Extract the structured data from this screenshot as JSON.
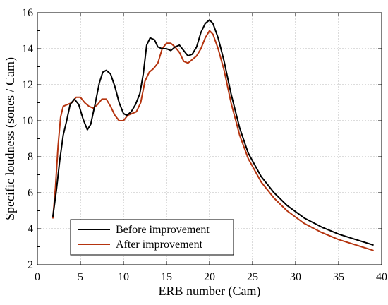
{
  "chart_data": {
    "type": "line",
    "xlabel": "ERB number (Cam)",
    "ylabel": "Specific loudness (sones / Cam)",
    "xlim": [
      0,
      40
    ],
    "ylim": [
      2,
      16
    ],
    "xticks": [
      0,
      5,
      10,
      15,
      20,
      25,
      30,
      35,
      40
    ],
    "yticks": [
      2,
      4,
      6,
      8,
      10,
      12,
      14,
      16
    ],
    "grid": true,
    "legend_position": "bottom-left",
    "series": [
      {
        "name": "Before improvement",
        "color": "#000000",
        "points": [
          [
            1.8,
            4.7
          ],
          [
            2.2,
            6.1
          ],
          [
            2.6,
            7.8
          ],
          [
            3.0,
            9.2
          ],
          [
            3.4,
            10.0
          ],
          [
            3.8,
            10.9
          ],
          [
            4.3,
            11.2
          ],
          [
            4.8,
            10.9
          ],
          [
            5.3,
            10.1
          ],
          [
            5.8,
            9.5
          ],
          [
            6.2,
            9.8
          ],
          [
            6.7,
            10.9
          ],
          [
            7.2,
            12.1
          ],
          [
            7.6,
            12.7
          ],
          [
            8.0,
            12.8
          ],
          [
            8.5,
            12.6
          ],
          [
            9.0,
            11.9
          ],
          [
            9.5,
            11.0
          ],
          [
            10.0,
            10.4
          ],
          [
            10.4,
            10.3
          ],
          [
            10.9,
            10.5
          ],
          [
            11.4,
            10.9
          ],
          [
            11.9,
            11.5
          ],
          [
            12.3,
            12.6
          ],
          [
            12.7,
            14.2
          ],
          [
            13.1,
            14.6
          ],
          [
            13.6,
            14.5
          ],
          [
            14.0,
            14.1
          ],
          [
            14.5,
            14.0
          ],
          [
            15.0,
            14.0
          ],
          [
            15.5,
            13.9
          ],
          [
            16.0,
            14.1
          ],
          [
            16.5,
            14.2
          ],
          [
            17.0,
            13.9
          ],
          [
            17.5,
            13.6
          ],
          [
            18.0,
            13.7
          ],
          [
            18.5,
            14.1
          ],
          [
            19.0,
            14.9
          ],
          [
            19.5,
            15.4
          ],
          [
            20.0,
            15.6
          ],
          [
            20.4,
            15.4
          ],
          [
            21.0,
            14.6
          ],
          [
            21.7,
            13.3
          ],
          [
            22.5,
            11.5
          ],
          [
            23.5,
            9.6
          ],
          [
            24.5,
            8.2
          ],
          [
            26.0,
            6.9
          ],
          [
            27.5,
            6.0
          ],
          [
            29.0,
            5.3
          ],
          [
            31.0,
            4.6
          ],
          [
            33.0,
            4.1
          ],
          [
            35.0,
            3.7
          ],
          [
            37.0,
            3.4
          ],
          [
            39.0,
            3.1
          ]
        ]
      },
      {
        "name": "After improvement",
        "color": "#b5340f",
        "points": [
          [
            1.8,
            4.6
          ],
          [
            2.1,
            6.3
          ],
          [
            2.4,
            8.6
          ],
          [
            2.7,
            10.2
          ],
          [
            3.0,
            10.8
          ],
          [
            3.5,
            10.9
          ],
          [
            4.0,
            11.0
          ],
          [
            4.5,
            11.3
          ],
          [
            5.0,
            11.3
          ],
          [
            5.5,
            11.0
          ],
          [
            6.0,
            10.8
          ],
          [
            6.5,
            10.7
          ],
          [
            7.0,
            10.9
          ],
          [
            7.5,
            11.2
          ],
          [
            8.0,
            11.2
          ],
          [
            8.5,
            10.8
          ],
          [
            9.0,
            10.3
          ],
          [
            9.5,
            10.0
          ],
          [
            10.0,
            10.0
          ],
          [
            10.5,
            10.3
          ],
          [
            11.0,
            10.4
          ],
          [
            11.5,
            10.5
          ],
          [
            12.0,
            11.0
          ],
          [
            12.5,
            12.2
          ],
          [
            13.0,
            12.7
          ],
          [
            13.5,
            12.9
          ],
          [
            14.0,
            13.2
          ],
          [
            14.5,
            14.0
          ],
          [
            15.0,
            14.3
          ],
          [
            15.5,
            14.3
          ],
          [
            16.0,
            14.1
          ],
          [
            16.5,
            13.8
          ],
          [
            17.0,
            13.3
          ],
          [
            17.5,
            13.2
          ],
          [
            18.0,
            13.4
          ],
          [
            18.5,
            13.6
          ],
          [
            19.0,
            14.0
          ],
          [
            19.5,
            14.6
          ],
          [
            20.0,
            15.0
          ],
          [
            20.4,
            14.8
          ],
          [
            21.0,
            14.0
          ],
          [
            21.7,
            12.8
          ],
          [
            22.5,
            11.0
          ],
          [
            23.5,
            9.2
          ],
          [
            24.5,
            7.9
          ],
          [
            26.0,
            6.6
          ],
          [
            27.5,
            5.7
          ],
          [
            29.0,
            5.0
          ],
          [
            31.0,
            4.3
          ],
          [
            33.0,
            3.8
          ],
          [
            35.0,
            3.4
          ],
          [
            37.0,
            3.1
          ],
          [
            39.0,
            2.8
          ]
        ]
      }
    ]
  }
}
